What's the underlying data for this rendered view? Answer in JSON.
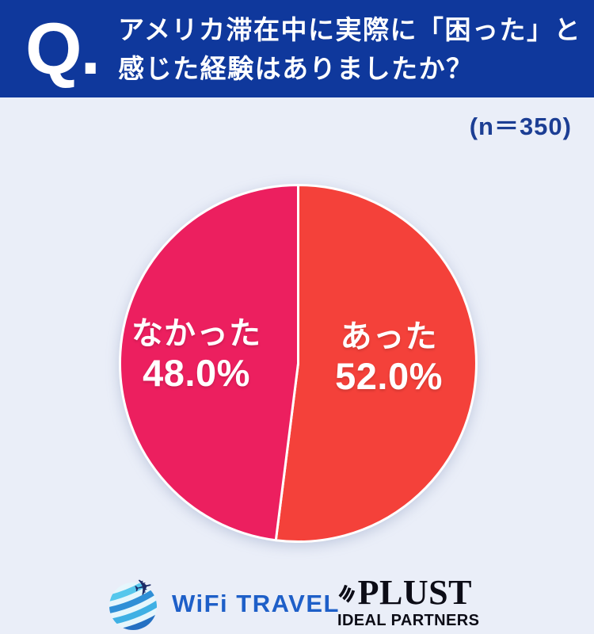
{
  "header": {
    "q_label": "Q.",
    "question_line1": "アメリカ滞在中に実際に「困った」と",
    "question_line2": "感じた経験はありましたか？"
  },
  "sample_note": "(n＝350)",
  "chart_data": {
    "type": "pie",
    "title": "アメリカ滞在中に実際に「困った」と感じた経験はありましたか？",
    "sample_size_label": "(n＝350)",
    "sample_size": 350,
    "start_angle_deg": -90,
    "direction": "clockwise",
    "legend_position": "inside",
    "slices": [
      {
        "id": "atta",
        "label": "あった",
        "value": 52.0,
        "pct_label": "52.0%",
        "color": "#f4413a"
      },
      {
        "id": "nakatta",
        "label": "なかった",
        "value": 48.0,
        "pct_label": "48.0%",
        "color": "#ec1f5f"
      }
    ]
  },
  "footer": {
    "wifi_travel": {
      "wordmark": "WiFi TRAVEL"
    },
    "plust": {
      "wordmark": "PLUST",
      "subtext": "IDEAL PARTNERS"
    }
  },
  "colors": {
    "header_bg": "#0f389c",
    "page_bg": "#eaeef8",
    "note_text": "#1c3e94",
    "slice_red": "#f4413a",
    "slice_pink": "#ec1f5f",
    "slice_divider": "#ffffff",
    "label_text": "#ffffff",
    "wifi_blue": "#1e5fc8",
    "plust_black": "#0c0c16"
  }
}
